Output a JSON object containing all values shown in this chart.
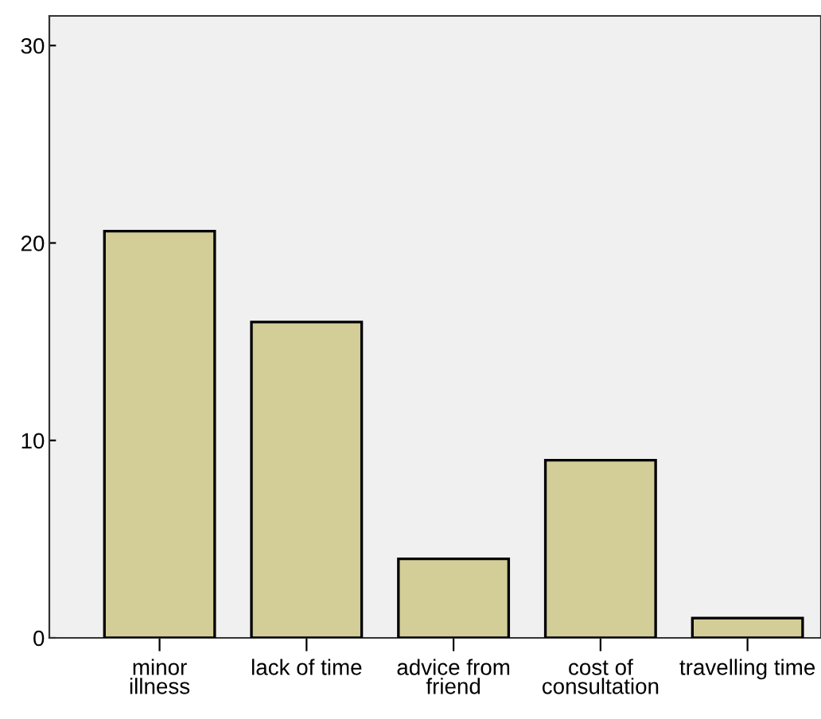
{
  "chart_data": {
    "type": "bar",
    "categories": [
      "minor\nillness",
      "lack of time",
      "advice from\nfriend",
      "cost of\nconsultation",
      "travelling time"
    ],
    "values": [
      20.6,
      16,
      4,
      9,
      1
    ],
    "color": "#d3ce98",
    "ylim": [
      0,
      31.5
    ],
    "yticks": [
      0,
      10,
      20,
      30
    ],
    "grid": false
  }
}
